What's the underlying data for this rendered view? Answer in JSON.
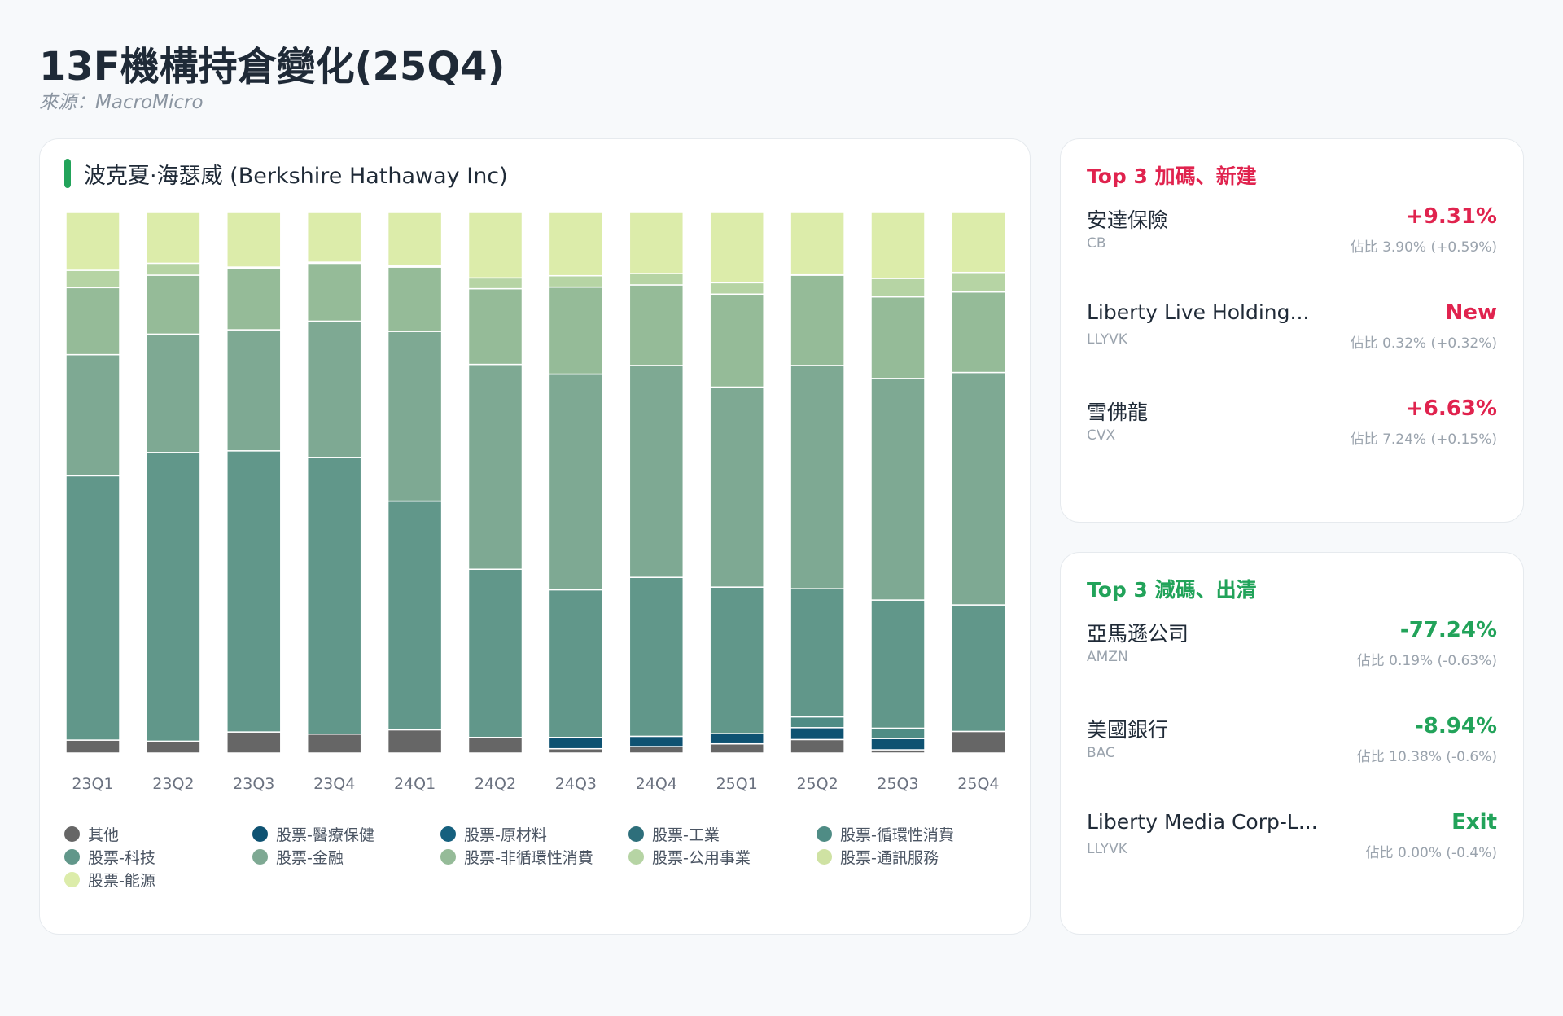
{
  "page": {
    "title": "13F機構持倉變化(25Q4)",
    "source": "來源：MacroMicro"
  },
  "colors": {
    "increase": "#e0234e",
    "decrease": "#22a35a",
    "accent": "#22a35a"
  },
  "chart_data": {
    "type": "bar",
    "stacked": true,
    "title": "波克夏·海瑟威 (Berkshire Hathaway Inc)",
    "categories": [
      "23Q1",
      "23Q2",
      "23Q3",
      "23Q4",
      "24Q1",
      "24Q2",
      "24Q3",
      "24Q4",
      "25Q1",
      "25Q2",
      "25Q3",
      "25Q4"
    ],
    "ylim": [
      0,
      100
    ],
    "grid": false,
    "legend_position": "bottom",
    "series": [
      {
        "name": "其他",
        "color": "#666666",
        "values": [
          2.4,
          2.2,
          3.9,
          3.5,
          4.3,
          2.9,
          0.8,
          1.2,
          1.7,
          2.5,
          0.6,
          4.0
        ]
      },
      {
        "name": "股票-醫療保健",
        "color": "#0e5272",
        "values": [
          0,
          0,
          0,
          0,
          0,
          0,
          2.1,
          1.9,
          1.9,
          2.2,
          2.1,
          0
        ]
      },
      {
        "name": "股票-原材料",
        "color": "#15607e",
        "values": [
          0,
          0,
          0,
          0,
          0,
          0,
          0,
          0,
          0,
          0,
          0,
          0
        ]
      },
      {
        "name": "股票-工業",
        "color": "#2e6f7b",
        "values": [
          0,
          0,
          0,
          0,
          0,
          0,
          0,
          0,
          0,
          0,
          0,
          0
        ]
      },
      {
        "name": "股票-循環性消費",
        "color": "#4f8c85",
        "values": [
          0,
          0,
          0,
          0,
          0,
          0,
          0,
          0,
          0,
          2.0,
          1.9,
          0
        ]
      },
      {
        "name": "股票-科技",
        "color": "#61978a",
        "values": [
          48.9,
          53.4,
          52.0,
          51.2,
          42.3,
          31.1,
          27.3,
          29.4,
          27.1,
          23.7,
          23.7,
          23.4
        ]
      },
      {
        "name": "股票-金融",
        "color": "#7ea993",
        "values": [
          22.4,
          21.9,
          22.4,
          25.2,
          31.4,
          37.9,
          39.9,
          39.2,
          37.0,
          41.3,
          41.0,
          43.0
        ]
      },
      {
        "name": "股票-非循環性消費",
        "color": "#95bb98",
        "values": [
          12.4,
          10.9,
          11.4,
          10.7,
          11.9,
          14.0,
          16.1,
          14.9,
          17.2,
          16.7,
          15.1,
          14.9
        ]
      },
      {
        "name": "股票-公用事業",
        "color": "#b6d4a4",
        "values": [
          3.2,
          2.2,
          0.2,
          0.2,
          0.2,
          2.0,
          2.1,
          2.1,
          2.1,
          0.2,
          3.4,
          3.6
        ]
      },
      {
        "name": "股票-通訊服務",
        "color": "#cfe2a3",
        "values": [
          0,
          0,
          0,
          0,
          0,
          0,
          0,
          0,
          0,
          0,
          0,
          0
        ]
      },
      {
        "name": "股票-能源",
        "color": "#dcecaa",
        "values": [
          10.7,
          9.4,
          10.1,
          9.2,
          9.9,
          12.1,
          11.7,
          11.3,
          13.0,
          11.4,
          12.2,
          11.1
        ]
      }
    ]
  },
  "top_increase": {
    "title": "Top 3 加碼、新建",
    "items": [
      {
        "name": "安達保險",
        "ticker": "CB",
        "change": "+9.31%",
        "share": "佔比 3.90% (+0.59%)"
      },
      {
        "name": "Liberty Live Holding...",
        "ticker": "LLYVK",
        "change": "New",
        "share": "佔比 0.32% (+0.32%)"
      },
      {
        "name": "雪佛龍",
        "ticker": "CVX",
        "change": "+6.63%",
        "share": "佔比 7.24% (+0.15%)"
      }
    ]
  },
  "top_decrease": {
    "title": "Top 3 減碼、出清",
    "items": [
      {
        "name": "亞馬遜公司",
        "ticker": "AMZN",
        "change": "-77.24%",
        "share": "佔比 0.19% (-0.63%)"
      },
      {
        "name": "美國銀行",
        "ticker": "BAC",
        "change": "-8.94%",
        "share": "佔比 10.38% (-0.6%)"
      },
      {
        "name": "Liberty Media Corp-L...",
        "ticker": "LLYVK",
        "change": "Exit",
        "share": "佔比 0.00% (-0.4%)"
      }
    ]
  }
}
